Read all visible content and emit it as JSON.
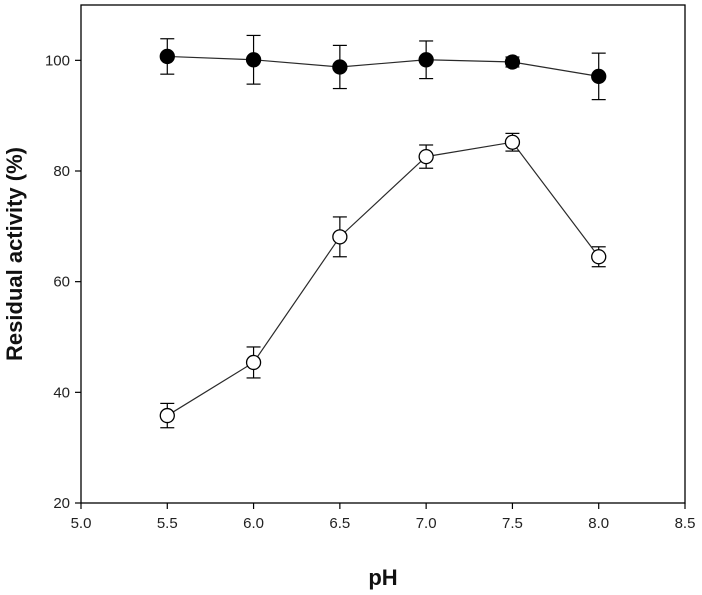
{
  "chart_data": {
    "type": "scatter",
    "title": "",
    "xlabel": "pH",
    "ylabel": "Residual activity (%)",
    "xlim": [
      5.0,
      8.5
    ],
    "ylim": [
      20,
      110
    ],
    "x_ticks": [
      5.0,
      5.5,
      6.0,
      6.5,
      7.0,
      7.5,
      8.0,
      8.5
    ],
    "x_tick_labels": [
      "5.0",
      "5.5",
      "6.0",
      "6.5",
      "7.0",
      "7.5",
      "8.0",
      "8.5"
    ],
    "y_ticks": [
      20,
      40,
      60,
      80,
      100
    ],
    "y_tick_labels": [
      "20",
      "40",
      "60",
      "80",
      "100"
    ],
    "grid": false,
    "legend": "none",
    "series": [
      {
        "marker": "filled-circle",
        "connected": true,
        "color": "#000000",
        "x": [
          5.5,
          6.0,
          6.5,
          7.0,
          7.5,
          8.0
        ],
        "y": [
          100.7,
          100.1,
          98.8,
          100.1,
          99.7,
          97.1
        ],
        "error": [
          3.2,
          4.4,
          3.9,
          3.4,
          0.9,
          4.2
        ]
      },
      {
        "marker": "open-circle",
        "connected": true,
        "color": "#000000",
        "x": [
          5.5,
          6.0,
          6.5,
          7.0,
          7.5,
          8.0
        ],
        "y": [
          35.8,
          45.4,
          68.1,
          82.6,
          85.2,
          64.5
        ],
        "error": [
          2.2,
          2.8,
          3.6,
          2.1,
          1.6,
          1.8
        ]
      }
    ]
  }
}
